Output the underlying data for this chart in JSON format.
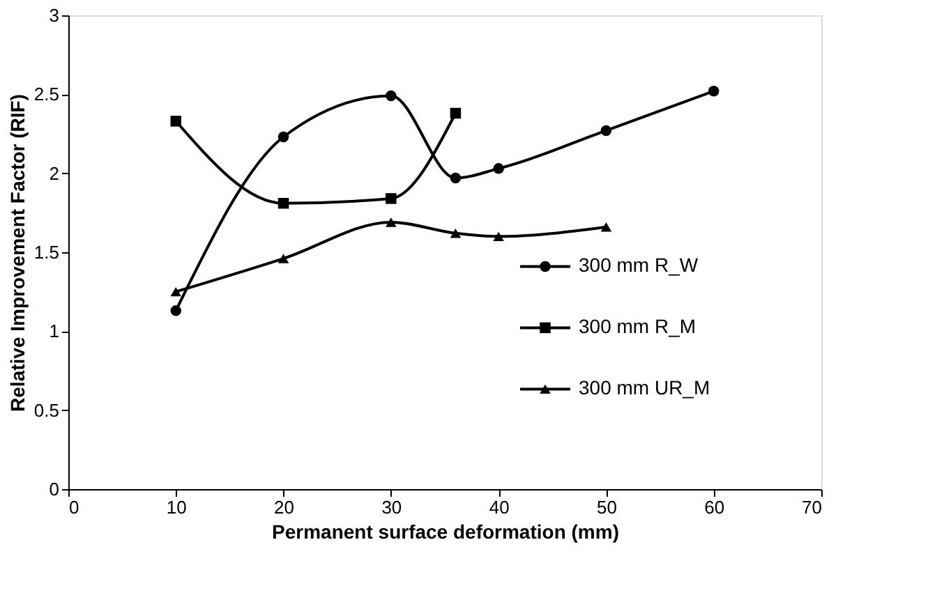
{
  "chart_data": {
    "type": "line",
    "xlabel": "Permanent surface deformation (mm)",
    "ylabel": "Relative Improvement Factor (RIF)",
    "xlim": [
      0,
      70
    ],
    "xticks": [
      0,
      10,
      20,
      30,
      40,
      50,
      60,
      70
    ],
    "ylim": [
      0,
      3
    ],
    "yticks": [
      0,
      0.5,
      1,
      1.5,
      2,
      2.5,
      3
    ],
    "grid": false,
    "legend": "right",
    "line_style": "solid",
    "series": [
      {
        "name": "300 mm R_W",
        "color": "#000000",
        "marker": "circle",
        "x": [
          10,
          20,
          30,
          36,
          40,
          50,
          60
        ],
        "values": [
          1.13,
          2.23,
          2.49,
          1.97,
          2.03,
          2.27,
          2.52
        ]
      },
      {
        "name": "300 mm R_M",
        "color": "#000000",
        "marker": "square",
        "x": [
          10,
          20,
          30,
          36
        ],
        "values": [
          2.33,
          1.81,
          1.84,
          2.38
        ]
      },
      {
        "name": "300 mm UR_M",
        "color": "#000000",
        "marker": "triangle",
        "x": [
          10,
          20,
          30,
          36,
          40,
          50
        ],
        "values": [
          1.25,
          1.46,
          1.69,
          1.62,
          1.6,
          1.66
        ]
      }
    ]
  }
}
